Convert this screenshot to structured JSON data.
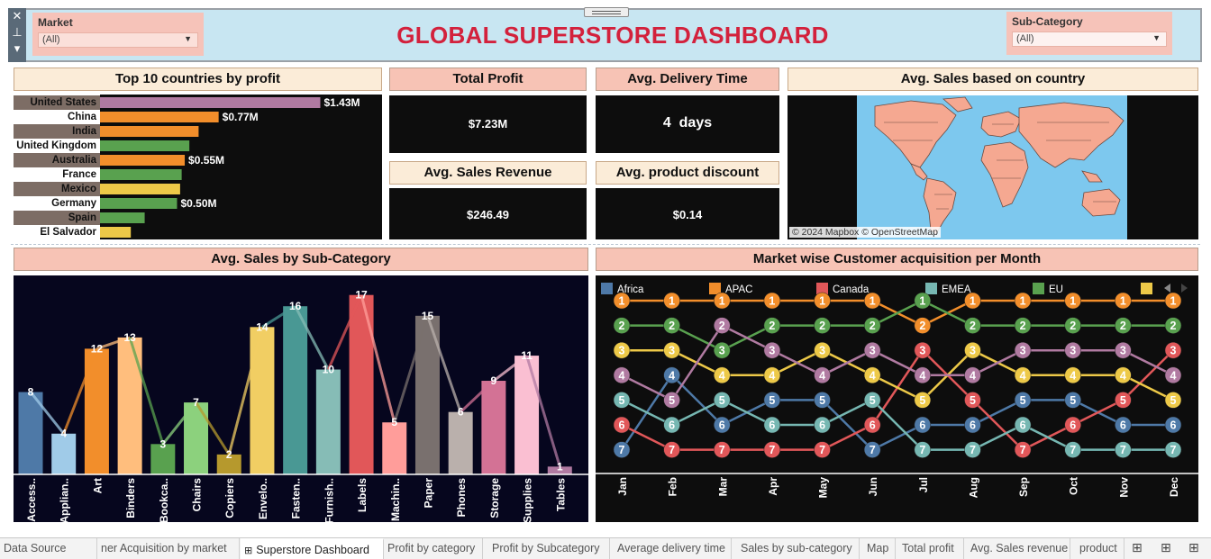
{
  "header": {
    "title": "GLOBAL SUPERSTORE DASHBOARD",
    "market_filter": {
      "label": "Market",
      "value": "(All)"
    },
    "subcat_filter": {
      "label": "Sub-Category",
      "value": "(All)"
    }
  },
  "panels": {
    "top10_title": "Top 10 countries by profit",
    "total_profit_title": "Total Profit",
    "total_profit_value": "$7.23M",
    "delivery_title": "Avg. Delivery Time",
    "delivery_value": "4  days",
    "sales_rev_title": "Avg. Sales Revenue",
    "sales_rev_value": "$246.49",
    "discount_title": "Avg. product discount",
    "discount_value": "$0.14",
    "map_title": "Avg. Sales based on country",
    "map_credit": "© 2024 Mapbox © OpenStreetMap",
    "subcat_title": "Avg. Sales by Sub-Category",
    "acq_title": "Market wise Customer acquisition per Month"
  },
  "chart_data": [
    {
      "id": "top10",
      "type": "bar",
      "orientation": "horizontal",
      "categories": [
        "United States",
        "China",
        "India",
        "United Kingdom",
        "Australia",
        "France",
        "Mexico",
        "Germany",
        "Spain",
        "El Salvador"
      ],
      "values": [
        1.43,
        0.77,
        0.64,
        0.58,
        0.55,
        0.53,
        0.52,
        0.5,
        0.29,
        0.2
      ],
      "data_labels": [
        "$1.43M",
        "$0.77M",
        "",
        "",
        "$0.55M",
        "",
        "",
        "$0.50M",
        "",
        ""
      ],
      "bar_colors": [
        "#b07aa1",
        "#f28e2b",
        "#f28e2b",
        "#59a14f",
        "#f28e2b",
        "#59a14f",
        "#edc948",
        "#59a14f",
        "#59a14f",
        "#edc948"
      ],
      "xlim": [
        0,
        1.55
      ]
    },
    {
      "id": "subcat",
      "type": "bar",
      "categories": [
        "Access..",
        "Applian..",
        "Art",
        "Binders",
        "Bookca..",
        "Chairs",
        "Copiers",
        "Envelo..",
        "Fasten..",
        "Furnish..",
        "Labels",
        "Machin..",
        "Paper",
        "Phones",
        "Storage",
        "Supplies",
        "Tables"
      ],
      "values": [
        8,
        4,
        12,
        13,
        3,
        7,
        2,
        14,
        16,
        10,
        17,
        5,
        15,
        6,
        9,
        11,
        1
      ],
      "bar_heights": [
        95,
        47,
        145,
        158,
        35,
        83,
        23,
        170,
        194,
        121,
        207,
        60,
        183,
        72,
        108,
        137,
        9
      ],
      "colors": [
        "#4e79a7",
        "#a0cbe8",
        "#f28e2b",
        "#ffbe7d",
        "#59a14f",
        "#8cd17d",
        "#b6992d",
        "#f1ce63",
        "#499894",
        "#86bcb6",
        "#e15759",
        "#ff9d9a",
        "#79706e",
        "#bab0ac",
        "#d37295",
        "#fabfd2",
        "#b07aa1"
      ],
      "ylim": [
        0,
        215
      ]
    },
    {
      "id": "acquisition",
      "type": "line",
      "x": [
        "Jan",
        "Feb",
        "Mar",
        "Apr",
        "May",
        "Jun",
        "Jul",
        "Aug",
        "Sep",
        "Oct",
        "Nov",
        "Dec"
      ],
      "ylim": [
        1,
        7
      ],
      "y_inverted": true,
      "legend": [
        "Africa",
        "APAC",
        "Canada",
        "EMEA",
        "EU",
        ""
      ],
      "series": [
        {
          "name": "Africa",
          "color": "#4e79a7",
          "values": [
            7,
            4,
            6,
            5,
            5,
            7,
            6,
            6,
            5,
            5,
            6,
            6
          ]
        },
        {
          "name": "APAC",
          "color": "#f28e2b",
          "values": [
            1,
            1,
            1,
            1,
            1,
            1,
            2,
            1,
            1,
            1,
            1,
            1
          ]
        },
        {
          "name": "Canada",
          "color": "#e15759",
          "values": [
            6,
            7,
            7,
            7,
            7,
            6,
            3,
            5,
            7,
            6,
            5,
            3
          ]
        },
        {
          "name": "EMEA",
          "color": "#76b7b2",
          "values": [
            5,
            6,
            5,
            6,
            6,
            5,
            7,
            7,
            6,
            7,
            7,
            7
          ]
        },
        {
          "name": "EU",
          "color": "#59a14f",
          "values": [
            2,
            2,
            3,
            2,
            2,
            2,
            1,
            2,
            2,
            2,
            2,
            2
          ]
        },
        {
          "name": "",
          "color": "#edc948",
          "values": [
            3,
            3,
            4,
            4,
            3,
            4,
            5,
            3,
            4,
            4,
            4,
            5
          ]
        },
        {
          "name": "",
          "color": "#b07aa1",
          "values": [
            4,
            5,
            2,
            3,
            4,
            3,
            4,
            4,
            3,
            3,
            3,
            4
          ]
        }
      ]
    }
  ],
  "tabs": [
    {
      "label": "Data Source"
    },
    {
      "label": "ner Acquisition by market"
    },
    {
      "label": "Superstore Dashboard"
    },
    {
      "label": "Profit by category"
    },
    {
      "label": "Profit by Subcategory"
    },
    {
      "label": "Average delivery time"
    },
    {
      "label": "Sales by sub-category"
    },
    {
      "label": "Map"
    },
    {
      "label": "Total profit"
    },
    {
      "label": "Avg. Sales revenue"
    },
    {
      "label": "product"
    }
  ]
}
